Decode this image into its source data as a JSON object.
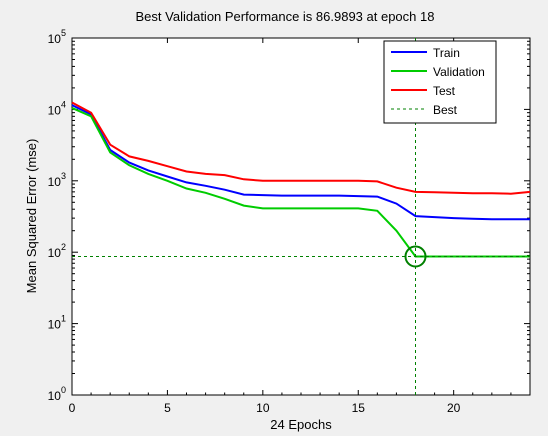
{
  "chart_data": {
    "type": "line",
    "title": "Best Validation Performance is 86.9893 at epoch 18",
    "xlabel": "24 Epochs",
    "ylabel": "Mean Squared Error  (mse)",
    "xlim": [
      0,
      24
    ],
    "ylim": [
      1,
      100000
    ],
    "yscale": "log",
    "grid": false,
    "legend_position": "top-right",
    "x_ticks": [
      "0",
      "5",
      "10",
      "15",
      "20"
    ],
    "y_ticks": [
      {
        "base": "10",
        "exp": "0"
      },
      {
        "base": "10",
        "exp": "1"
      },
      {
        "base": "10",
        "exp": "2"
      },
      {
        "base": "10",
        "exp": "3"
      },
      {
        "base": "10",
        "exp": "4"
      },
      {
        "base": "10",
        "exp": "5"
      }
    ],
    "x": [
      0,
      1,
      2,
      3,
      4,
      5,
      6,
      7,
      8,
      9,
      10,
      11,
      12,
      13,
      14,
      15,
      16,
      17,
      18,
      19,
      20,
      21,
      22,
      23,
      24
    ],
    "series": [
      {
        "name": "Train",
        "color": "#0000ff",
        "values": [
          11500,
          8500,
          2700,
          1800,
          1400,
          1150,
          950,
          850,
          750,
          640,
          630,
          620,
          620,
          620,
          620,
          610,
          600,
          480,
          320,
          310,
          300,
          295,
          290,
          290,
          290
        ]
      },
      {
        "name": "Validation",
        "color": "#00cc00",
        "values": [
          10500,
          8000,
          2500,
          1650,
          1250,
          1000,
          780,
          680,
          560,
          450,
          410,
          410,
          410,
          410,
          410,
          410,
          380,
          200,
          86.9893,
          86.9893,
          86.9893,
          86.9893,
          86.9893,
          86.9893,
          86.9893
        ]
      },
      {
        "name": "Test",
        "color": "#ff0000",
        "values": [
          12500,
          9000,
          3200,
          2200,
          1900,
          1600,
          1350,
          1250,
          1200,
          1050,
          1000,
          1000,
          1000,
          1000,
          1000,
          1000,
          980,
          800,
          700,
          690,
          680,
          670,
          670,
          660,
          700
        ]
      }
    ],
    "best": {
      "name": "Best",
      "color": "#008000",
      "epoch": 18,
      "value": 86.9893
    }
  }
}
